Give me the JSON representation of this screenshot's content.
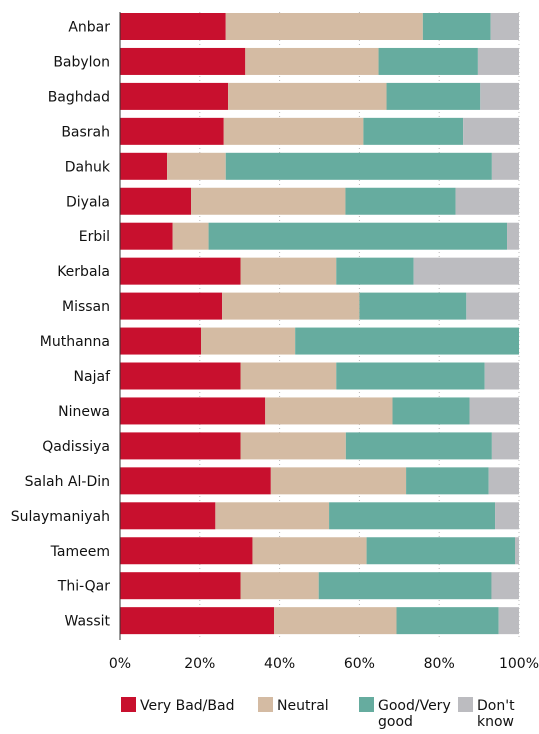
{
  "chart_data": {
    "type": "bar",
    "orientation": "horizontal",
    "stacked": true,
    "normalized": true,
    "categories": [
      "Anbar",
      "Babylon",
      "Baghdad",
      "Basrah",
      "Dahuk",
      "Diyala",
      "Erbil",
      "Kerbala",
      "Missan",
      "Muthanna",
      "Najaf",
      "Ninewa",
      "Qadissiya",
      "Salah Al-Din",
      "Sulaymaniyah",
      "Tameem",
      "Thi-Qar",
      "Wassit"
    ],
    "series": [
      {
        "name": "Very Bad/Bad",
        "color": "#c8102e",
        "values": [
          26.5,
          31.4,
          27.1,
          26.0,
          11.8,
          17.8,
          13.2,
          30.2,
          25.6,
          20.3,
          30.2,
          36.4,
          30.2,
          37.8,
          23.9,
          33.2,
          30.2,
          38.6
        ]
      },
      {
        "name": "Neutral",
        "color": "#d4bba3",
        "values": [
          49.4,
          33.4,
          39.7,
          35.0,
          14.7,
          38.7,
          9.0,
          24.0,
          34.4,
          23.6,
          24.0,
          31.9,
          26.4,
          33.9,
          28.5,
          28.6,
          19.6,
          30.7
        ]
      },
      {
        "name": "Good/Very good",
        "color": "#66ac9f",
        "values": [
          17.0,
          24.9,
          23.5,
          25.0,
          66.7,
          27.6,
          74.8,
          19.4,
          26.8,
          56.1,
          37.2,
          19.3,
          36.6,
          20.7,
          41.6,
          37.2,
          43.3,
          25.6
        ]
      },
      {
        "name": "Don't know",
        "color": "#bcbcc0",
        "values": [
          7.1,
          10.3,
          9.7,
          14.0,
          6.8,
          15.9,
          3.0,
          26.4,
          13.2,
          0.0,
          8.6,
          12.4,
          6.8,
          7.6,
          6.0,
          1.0,
          6.9,
          5.1
        ]
      }
    ],
    "x_ticks": [
      "0%",
      "20%",
      "40%",
      "60%",
      "80%",
      "100%"
    ],
    "xlim": [
      0,
      100
    ],
    "grid": "vertical-dotted",
    "legend_position": "bottom",
    "legend": [
      {
        "lines": [
          "Very Bad/Bad"
        ]
      },
      {
        "lines": [
          "Neutral"
        ]
      },
      {
        "lines": [
          "Good/Very",
          "good"
        ]
      },
      {
        "lines": [
          "Don't",
          "know"
        ]
      }
    ]
  }
}
